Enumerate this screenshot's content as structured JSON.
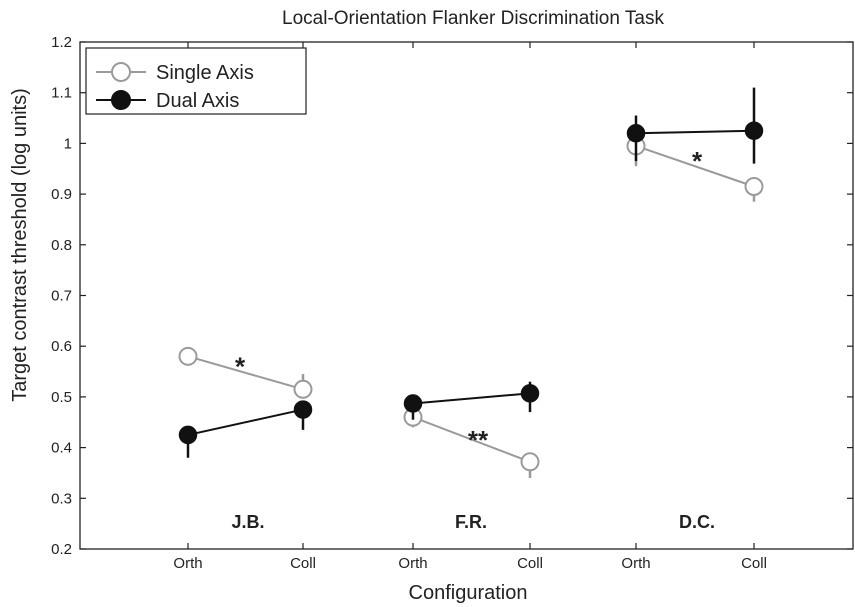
{
  "chart_data": {
    "type": "line",
    "title": "Local-Orientation Flanker Discrimination Task",
    "xlabel": "Configuration",
    "ylabel": "Target contrast threshold (log units)",
    "ylim": [
      0.2,
      1.2
    ],
    "yticks": [
      "0.2",
      "0.3",
      "0.4",
      "0.5",
      "0.6",
      "0.7",
      "0.8",
      "0.9",
      "1",
      "1.1",
      "1.2"
    ],
    "legend": {
      "position": "top-left"
    },
    "groups": [
      {
        "label": "J.B.",
        "categories": [
          "Orth",
          "Coll"
        ],
        "significance": "*",
        "series": [
          {
            "name": "Single Axis",
            "values": [
              0.58,
              0.515
            ],
            "err_low": [
              0.565,
              0.5
            ],
            "err_high": [
              0.59,
              0.545
            ]
          },
          {
            "name": "Dual Axis",
            "values": [
              0.425,
              0.475
            ],
            "err_low": [
              0.38,
              0.435
            ],
            "err_high": [
              0.43,
              0.48
            ]
          }
        ]
      },
      {
        "label": "F.R.",
        "categories": [
          "Orth",
          "Coll"
        ],
        "significance": "**",
        "series": [
          {
            "name": "Single Axis",
            "values": [
              0.46,
              0.372
            ],
            "err_low": [
              0.44,
              0.34
            ],
            "err_high": [
              0.47,
              0.38
            ]
          },
          {
            "name": "Dual Axis",
            "values": [
              0.487,
              0.507
            ],
            "err_low": [
              0.455,
              0.47
            ],
            "err_high": [
              0.492,
              0.53
            ]
          }
        ]
      },
      {
        "label": "D.C.",
        "categories": [
          "Orth",
          "Coll"
        ],
        "significance": "*",
        "series": [
          {
            "name": "Single Axis",
            "values": [
              0.995,
              0.915
            ],
            "err_low": [
              0.955,
              0.885
            ],
            "err_high": [
              1.005,
              0.925
            ]
          },
          {
            "name": "Dual Axis",
            "values": [
              1.02,
              1.025
            ],
            "err_low": [
              0.965,
              0.96
            ],
            "err_high": [
              1.055,
              1.11
            ]
          }
        ]
      }
    ],
    "colors": {
      "single": "#9a9a9a",
      "dual": "#111111"
    }
  }
}
